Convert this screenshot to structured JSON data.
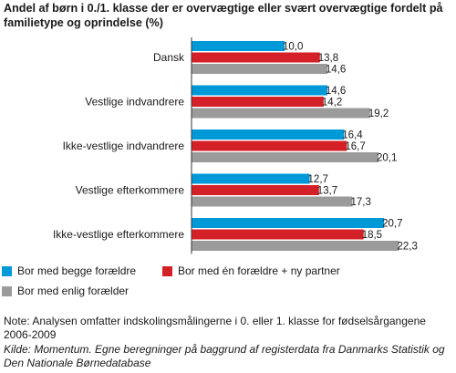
{
  "chart_data": {
    "type": "bar",
    "orientation": "horizontal",
    "title": "Andel af børn i 0./1. klasse der er overvægtige eller svært overvægtige fordelt på familietype og oprindelse (%)",
    "categories": [
      "Dansk",
      "Vestlige indvandrere",
      "Ikke-vestlige indvandrere",
      "Vestlige efterkommere",
      "Ikke-vestlige efterkommere"
    ],
    "series": [
      {
        "name": "Bor med begge forældre",
        "color": "#0099d8",
        "values": [
          10.0,
          14.6,
          16.4,
          12.7,
          20.7
        ],
        "labels": [
          "10,0",
          "14,6",
          "16,4",
          "12,7",
          "20,7"
        ]
      },
      {
        "name": "Bor med én forældre + ny partner",
        "color": "#d42027",
        "values": [
          13.8,
          14.2,
          16.7,
          13.7,
          18.5
        ],
        "labels": [
          "13,8",
          "14,2",
          "16,7",
          "13,7",
          "18,5"
        ]
      },
      {
        "name": "Bor med enlig forælder",
        "color": "#9b9b9b",
        "values": [
          14.6,
          19.2,
          20.1,
          17.3,
          22.3
        ],
        "labels": [
          "14,6",
          "19,2",
          "20,1",
          "17,3",
          "22,3"
        ]
      }
    ],
    "xlim": [
      0,
      23
    ],
    "grid": false,
    "legend_position": "bottom"
  },
  "note": "Note: Analysen omfatter indskolingsmålingerne i 0. eller 1. klasse for fødselsårgangene 2006-2009",
  "source": "Kilde: Momentum. Egne beregninger på baggrund af registerdata fra Danmarks Statistik og Den Nationale Børnedatabase",
  "background_color": "#ffffff"
}
